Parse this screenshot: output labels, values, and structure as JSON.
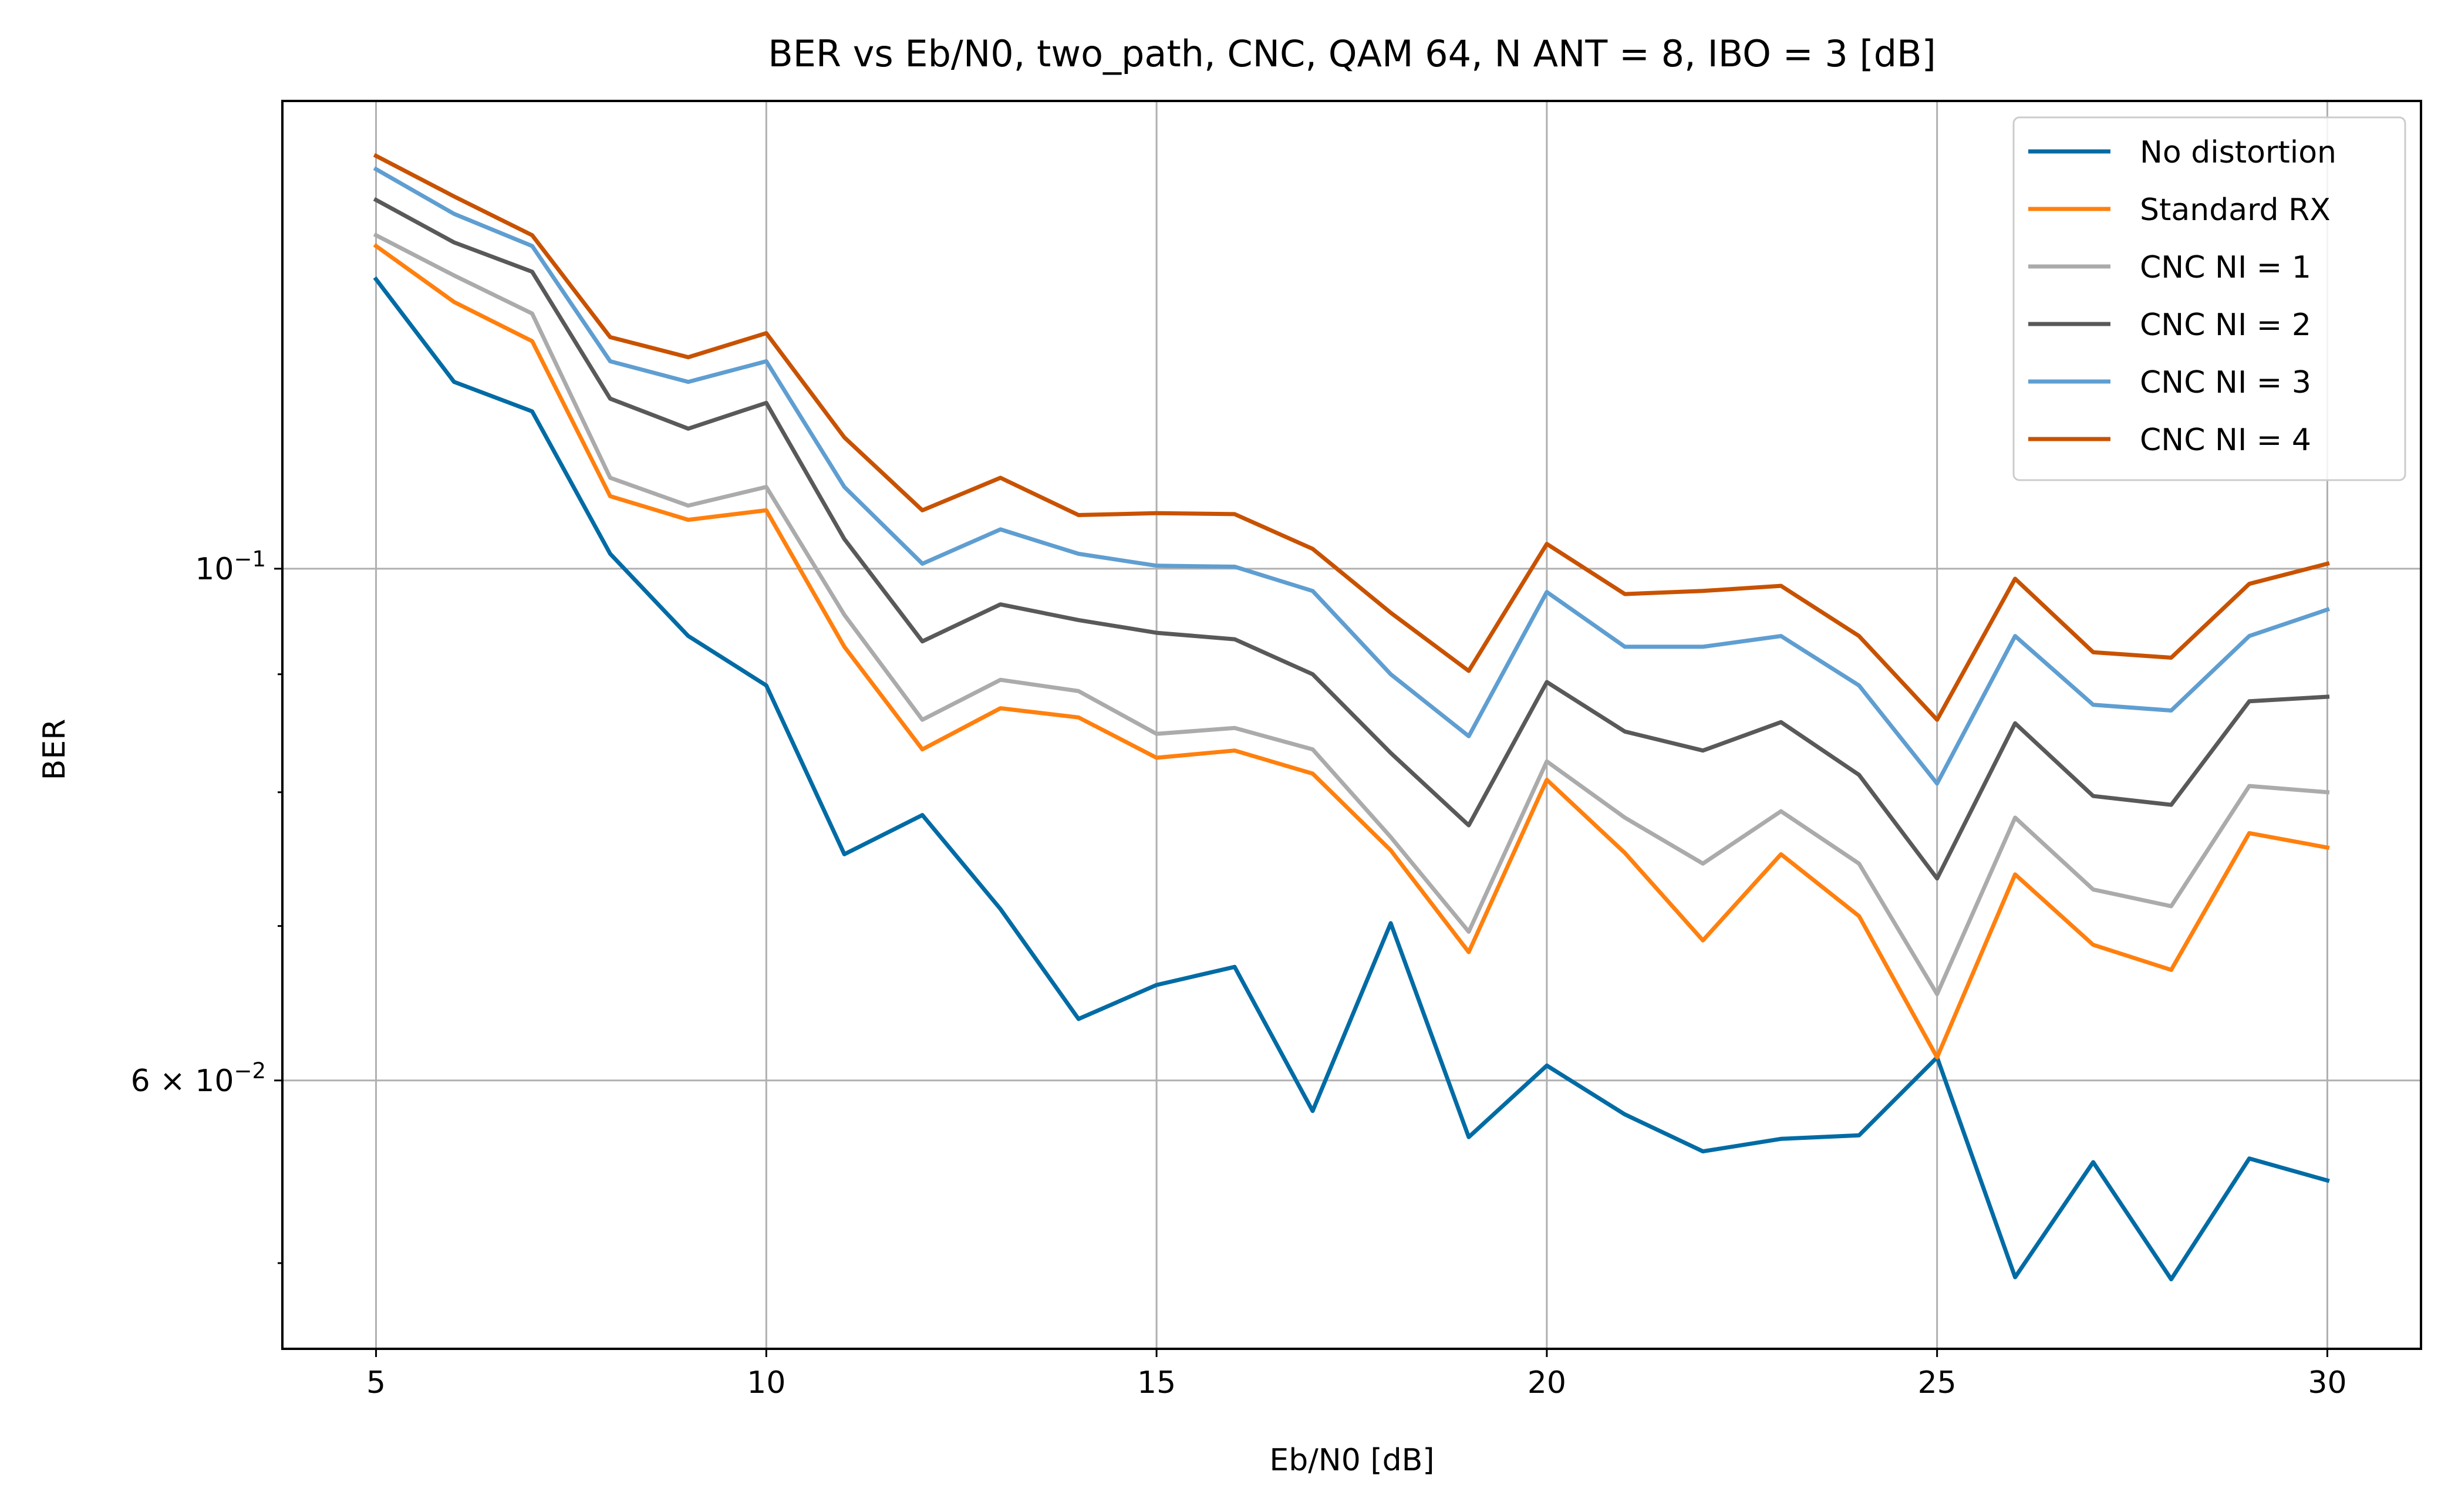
{
  "chart_data": {
    "type": "line",
    "title": "BER vs Eb/N0, two_path, CNC, QAM 64, N ANT = 8, IBO = 3 [dB]",
    "xlabel": "Eb/N0 [dB]",
    "ylabel": "BER",
    "xlim": [
      3.8,
      31.2
    ],
    "ylim": [
      0.0459,
      0.1595
    ],
    "yscale": "log",
    "grid": "major",
    "legend_position": "top-right",
    "x_ticks": [
      5,
      10,
      15,
      20,
      25,
      30
    ],
    "x_tick_labels": [
      "5",
      "10",
      "15",
      "20",
      "25",
      "30"
    ],
    "y_major_ticks": [
      {
        "value": 0.1,
        "base": "10",
        "exp": "−1"
      },
      {
        "value": 0.06,
        "base": "6 × 10",
        "exp": "−2"
      }
    ],
    "y_minor_ticks": [
      0.05,
      0.07,
      0.08,
      0.09
    ],
    "x": [
      5,
      6,
      7,
      8,
      9,
      10,
      11,
      12,
      13,
      14,
      15,
      16,
      17,
      18,
      19,
      20,
      21,
      22,
      23,
      24,
      25,
      26,
      27,
      28,
      29,
      30
    ],
    "series": [
      {
        "name": "No distortion",
        "color": "#006ba4",
        "values": [
          0.1335,
          0.1205,
          0.117,
          0.1015,
          0.0935,
          0.089,
          0.0752,
          0.0782,
          0.0712,
          0.0638,
          0.066,
          0.0672,
          0.0582,
          0.0702,
          0.0567,
          0.0609,
          0.058,
          0.0559,
          0.0566,
          0.0568,
          0.0614,
          0.0493,
          0.0553,
          0.0492,
          0.0555,
          0.0543
        ]
      },
      {
        "name": "Standard RX",
        "color": "#ff800e",
        "values": [
          0.138,
          0.1305,
          0.1255,
          0.1075,
          0.105,
          0.106,
          0.0925,
          0.0835,
          0.087,
          0.0862,
          0.0828,
          0.0834,
          0.0815,
          0.0755,
          0.0682,
          0.081,
          0.0753,
          0.069,
          0.0752,
          0.0707,
          0.0614,
          0.0737,
          0.0687,
          0.067,
          0.0768,
          0.0757
        ]
      },
      {
        "name": "CNC NI = 1",
        "color": "#ababab",
        "values": [
          0.1395,
          0.134,
          0.129,
          0.1095,
          0.1065,
          0.1085,
          0.0955,
          0.086,
          0.0895,
          0.0885,
          0.0848,
          0.0853,
          0.0835,
          0.0765,
          0.0696,
          0.0825,
          0.078,
          0.0745,
          0.0785,
          0.0745,
          0.0654,
          0.078,
          0.0726,
          0.0714,
          0.0805,
          0.08
        ]
      },
      {
        "name": "CNC NI = 2",
        "color": "#595959",
        "values": [
          0.1445,
          0.1385,
          0.1345,
          0.1185,
          0.115,
          0.118,
          0.103,
          0.093,
          0.0965,
          0.095,
          0.0938,
          0.0932,
          0.09,
          0.0832,
          0.0774,
          0.0893,
          0.085,
          0.0834,
          0.0858,
          0.0814,
          0.0734,
          0.0857,
          0.0797,
          0.079,
          0.0876,
          0.088
        ]
      },
      {
        "name": "CNC NI = 3",
        "color": "#5f9ed1",
        "values": [
          0.149,
          0.1425,
          0.138,
          0.123,
          0.1205,
          0.123,
          0.1085,
          0.1005,
          0.104,
          0.1015,
          0.1003,
          0.1002,
          0.0978,
          0.09,
          0.0846,
          0.0977,
          0.0925,
          0.0925,
          0.0935,
          0.089,
          0.0807,
          0.0935,
          0.0873,
          0.0868,
          0.0935,
          0.096
        ]
      },
      {
        "name": "CNC NI = 4",
        "color": "#c85200",
        "values": [
          0.151,
          0.145,
          0.1395,
          0.126,
          0.1235,
          0.1265,
          0.114,
          0.106,
          0.1095,
          0.1055,
          0.1057,
          0.1056,
          0.102,
          0.0957,
          0.0903,
          0.1025,
          0.0975,
          0.0978,
          0.0983,
          0.0935,
          0.086,
          0.099,
          0.092,
          0.0915,
          0.0985,
          0.1005
        ]
      }
    ]
  }
}
